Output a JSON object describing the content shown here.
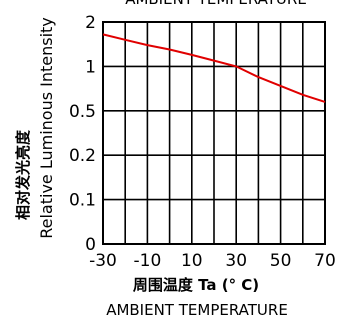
{
  "chart_data": {
    "type": "line",
    "title": "AMBIENT TEMPERATURE",
    "xlabel_cn": "周围温度 Ta (° C)",
    "xlabel_en": "AMBIENT TEMPERATURE",
    "ylabel_cn": "相对发光亮度",
    "ylabel_en": "Relative Luminous Intensity",
    "x_ticks": [
      "-30",
      "-10",
      "10",
      "30",
      "50",
      "70"
    ],
    "y_ticks": [
      "0",
      "0.1",
      "0.2",
      "0.5",
      "1",
      "2"
    ],
    "xlim": [
      -30,
      70
    ],
    "ylim": [
      0,
      2
    ],
    "y_scale": "nonlinear (ticks 0, 0.1, 0.2, 0.5, 1, 2)",
    "grid": true,
    "series": [
      {
        "color": "#e00000",
        "x": [
          -30,
          -20,
          -10,
          0,
          10,
          20,
          30,
          40,
          50,
          60,
          70
        ],
        "y": [
          1.72,
          1.6,
          1.48,
          1.38,
          1.26,
          1.13,
          1.0,
          0.88,
          0.78,
          0.68,
          0.6
        ]
      }
    ]
  }
}
